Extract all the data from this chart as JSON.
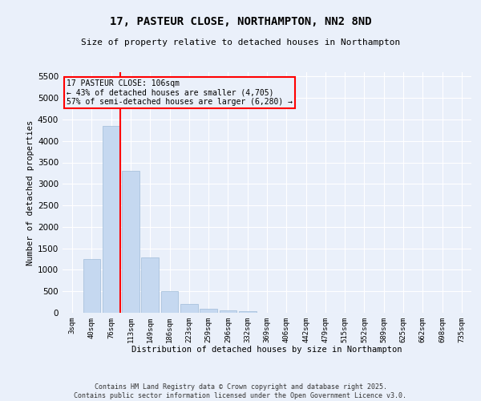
{
  "title1": "17, PASTEUR CLOSE, NORTHAMPTON, NN2 8ND",
  "title2": "Size of property relative to detached houses in Northampton",
  "xlabel": "Distribution of detached houses by size in Northampton",
  "ylabel": "Number of detached properties",
  "categories": [
    "3sqm",
    "40sqm",
    "76sqm",
    "113sqm",
    "149sqm",
    "186sqm",
    "223sqm",
    "259sqm",
    "296sqm",
    "332sqm",
    "369sqm",
    "406sqm",
    "442sqm",
    "479sqm",
    "515sqm",
    "552sqm",
    "589sqm",
    "625sqm",
    "662sqm",
    "698sqm",
    "735sqm"
  ],
  "values": [
    0,
    1250,
    4350,
    3300,
    1280,
    500,
    210,
    90,
    50,
    40,
    0,
    0,
    0,
    0,
    0,
    0,
    0,
    0,
    0,
    0,
    0
  ],
  "bar_color": "#c5d8f0",
  "bar_edge_color": "#a0bcd8",
  "vline_x_index": 2.45,
  "vline_color": "red",
  "annotation_title": "17 PASTEUR CLOSE: 106sqm",
  "annotation_line1": "← 43% of detached houses are smaller (4,705)",
  "annotation_line2": "57% of semi-detached houses are larger (6,280) →",
  "annotation_box_color": "red",
  "ylim": [
    0,
    5600
  ],
  "yticks": [
    0,
    500,
    1000,
    1500,
    2000,
    2500,
    3000,
    3500,
    4000,
    4500,
    5000,
    5500
  ],
  "background_color": "#eaf0fa",
  "grid_color": "#ffffff",
  "footer1": "Contains HM Land Registry data © Crown copyright and database right 2025.",
  "footer2": "Contains public sector information licensed under the Open Government Licence v3.0."
}
